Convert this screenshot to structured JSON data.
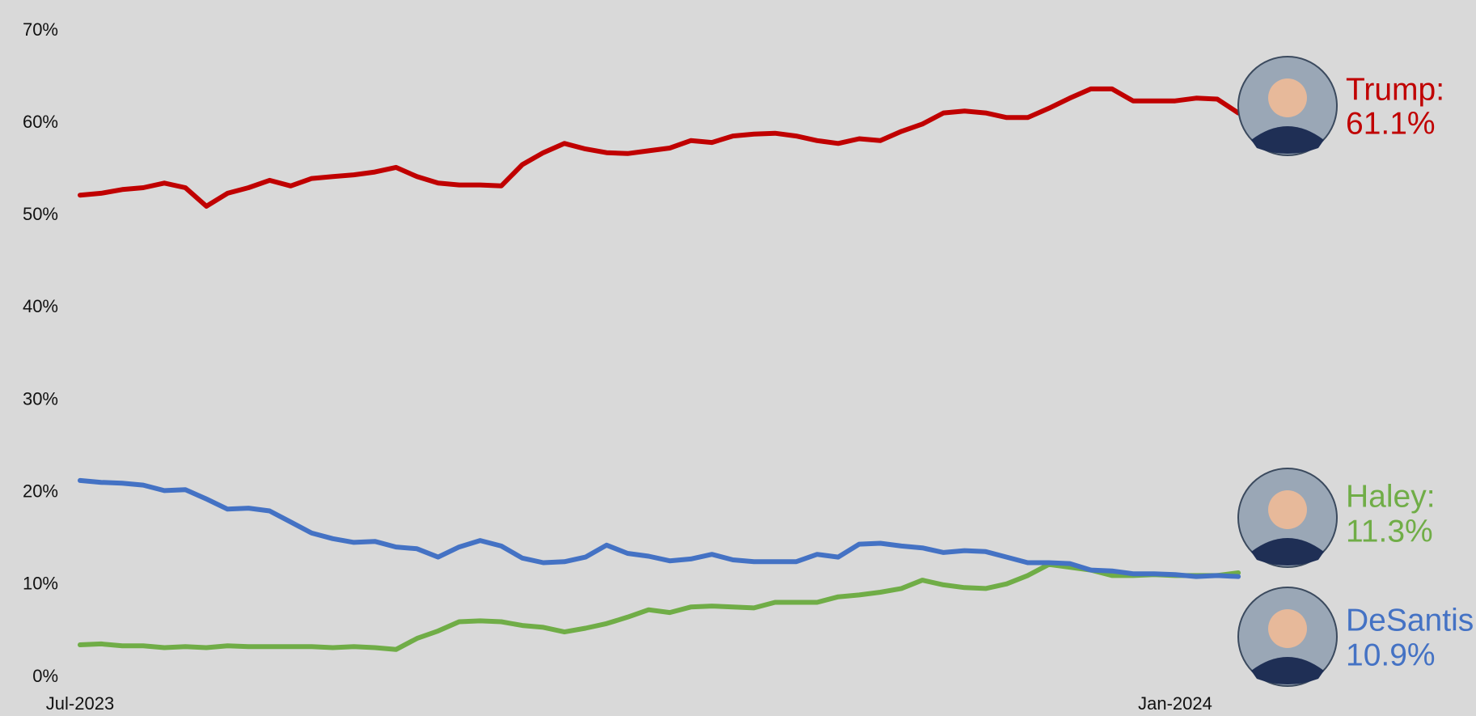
{
  "chart_data": {
    "type": "line",
    "categories": [
      "Jul-2023",
      null,
      null,
      null,
      null,
      null,
      null,
      null,
      null,
      null,
      null,
      null,
      null,
      null,
      null,
      null,
      null,
      null,
      null,
      null,
      null,
      null,
      null,
      null,
      null,
      null,
      null,
      null,
      null,
      null,
      null,
      null,
      null,
      null,
      null,
      null,
      null,
      null,
      null,
      null,
      null,
      null,
      null,
      null,
      null,
      null,
      null,
      null,
      null,
      null,
      null,
      null,
      "Jan-2024",
      null,
      null,
      null
    ],
    "series": [
      {
        "name": "Trump:",
        "color": "#c00000",
        "end_label": "61.1%",
        "values": [
          52.2,
          52.4,
          52.8,
          53.0,
          53.5,
          53.0,
          51.0,
          52.4,
          53.0,
          53.8,
          53.2,
          54.0,
          54.2,
          54.4,
          54.7,
          55.2,
          54.2,
          53.5,
          53.3,
          53.3,
          53.2,
          55.5,
          56.8,
          57.8,
          57.2,
          56.8,
          56.7,
          57.0,
          57.3,
          58.1,
          57.9,
          58.6,
          58.8,
          58.9,
          58.6,
          58.1,
          57.8,
          58.3,
          58.1,
          59.1,
          59.9,
          61.1,
          61.3,
          61.1,
          60.6,
          60.6,
          61.6,
          62.7,
          63.7,
          63.7,
          62.4,
          62.4,
          62.4,
          62.7,
          62.6,
          61.1
        ]
      },
      {
        "name": "Haley:",
        "color": "#70ad47",
        "end_label": "11.3%",
        "values": [
          3.5,
          3.6,
          3.4,
          3.4,
          3.2,
          3.3,
          3.2,
          3.4,
          3.3,
          3.3,
          3.3,
          3.3,
          3.2,
          3.3,
          3.2,
          3.0,
          4.2,
          5.0,
          6.0,
          6.1,
          6.0,
          5.6,
          5.4,
          4.9,
          5.3,
          5.8,
          6.5,
          7.3,
          7.0,
          7.6,
          7.7,
          7.6,
          7.5,
          8.1,
          8.1,
          8.1,
          8.7,
          8.9,
          9.2,
          9.6,
          10.5,
          10.0,
          9.7,
          9.6,
          10.1,
          11.0,
          12.2,
          11.9,
          11.6,
          11.0,
          11.0,
          11.1,
          11.0,
          11.0,
          11.0,
          11.3
        ]
      },
      {
        "name": "DeSantis:",
        "color": "#4472c4",
        "end_label": "10.9%",
        "values": [
          21.3,
          21.1,
          21.0,
          20.8,
          20.2,
          20.3,
          19.3,
          18.2,
          18.3,
          18.0,
          16.8,
          15.6,
          15.0,
          14.6,
          14.7,
          14.1,
          13.9,
          13.0,
          14.1,
          14.8,
          14.2,
          12.9,
          12.4,
          12.5,
          13.0,
          14.3,
          13.4,
          13.1,
          12.6,
          12.8,
          13.3,
          12.7,
          12.5,
          12.5,
          12.5,
          13.3,
          13.0,
          14.4,
          14.5,
          14.2,
          14.0,
          13.5,
          13.7,
          13.6,
          13.0,
          12.4,
          12.4,
          12.3,
          11.6,
          11.5,
          11.2,
          11.2,
          11.1,
          10.9,
          11.0,
          10.9
        ]
      }
    ],
    "ylim": [
      0,
      70
    ],
    "yticks": [
      {
        "value": 0,
        "label": "0%"
      },
      {
        "value": 10,
        "label": "10%"
      },
      {
        "value": 20,
        "label": "20%"
      },
      {
        "value": 30,
        "label": "30%"
      },
      {
        "value": 40,
        "label": "40%"
      },
      {
        "value": 50,
        "label": "50%"
      },
      {
        "value": 60,
        "label": "60%"
      },
      {
        "value": 70,
        "label": "70%"
      }
    ],
    "grid": false
  }
}
